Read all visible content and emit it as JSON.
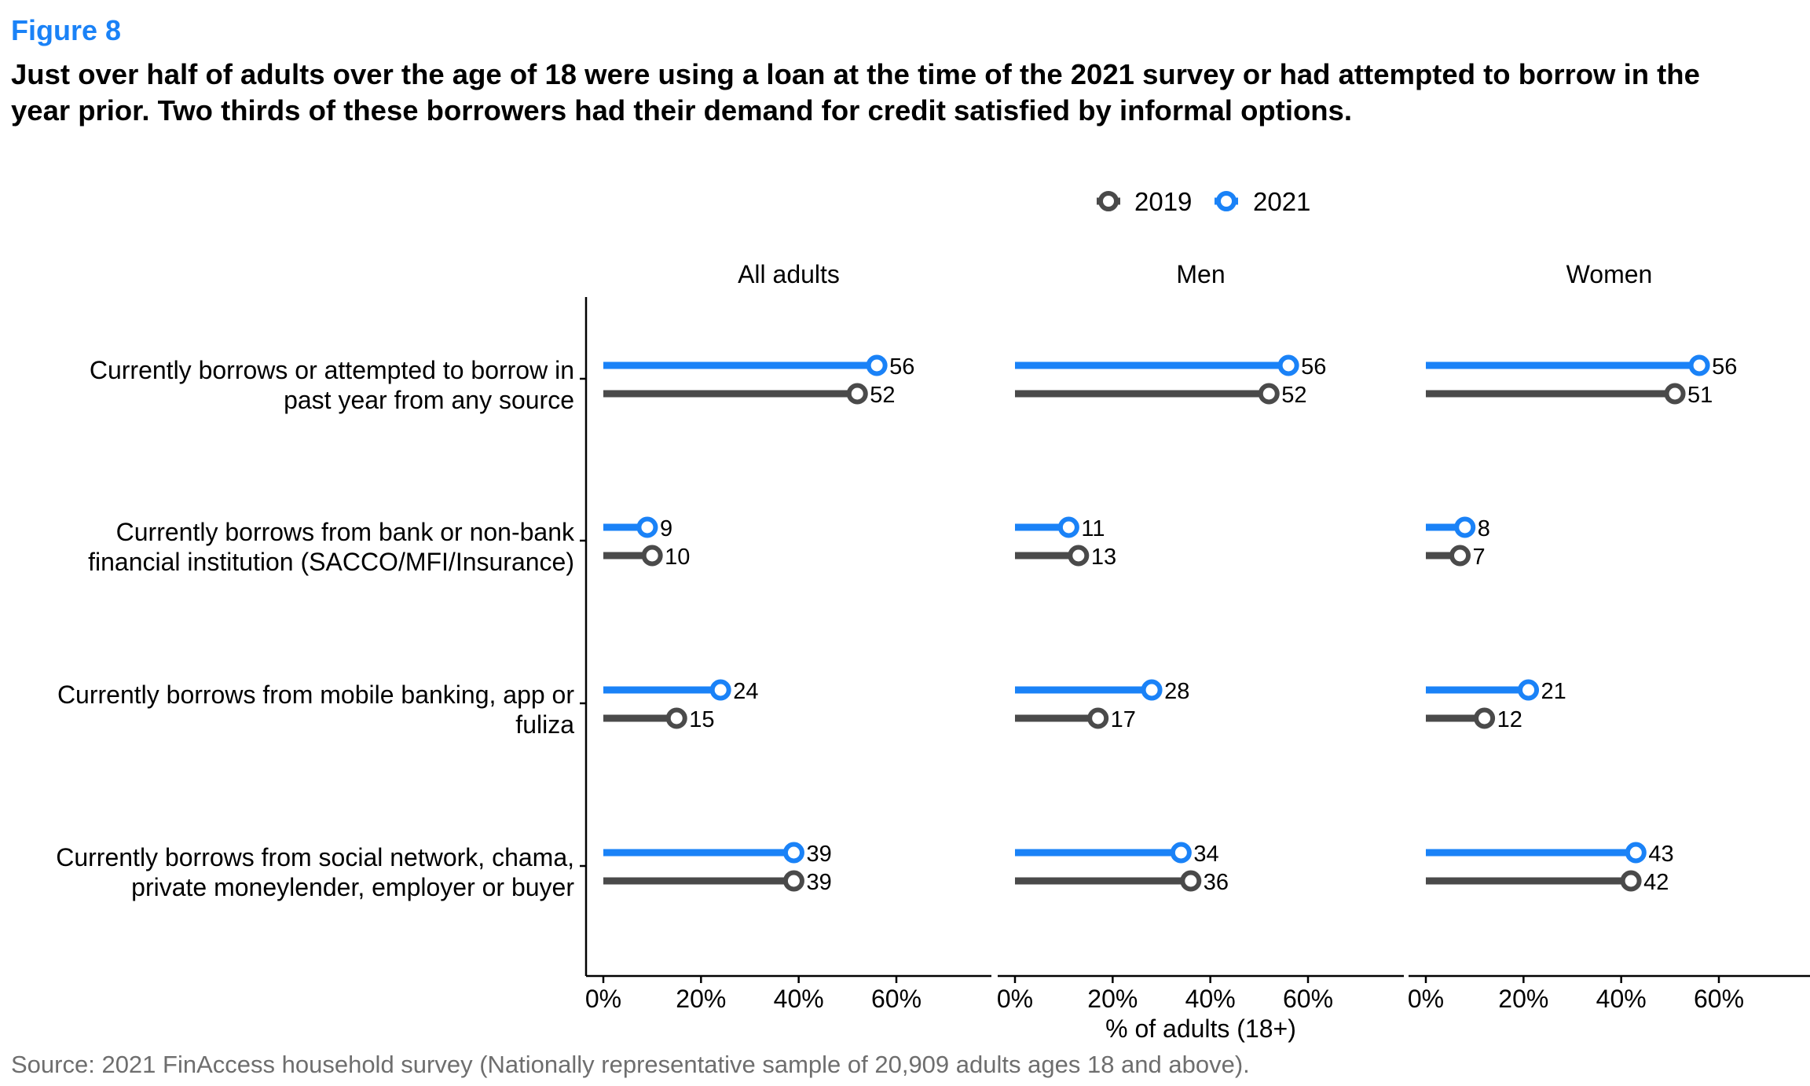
{
  "figure_label": "Figure 8",
  "headline": "Just over half of adults over the age of 18 were using a loan at the time of the 2021 survey or had attempted to borrow in the year prior. Two thirds of these borrowers had their demand for credit satisfied by informal options.",
  "source": "Source: 2021 FinAccess household survey (Nationally representative sample of 20,909 adults ages 18 and above).",
  "colors": {
    "series_2019": "#4a4a4a",
    "series_2021": "#1a82f7",
    "axis": "#000000"
  },
  "chart_data": {
    "type": "dumbbell-lollipop",
    "legend_position": "top",
    "xlabel": "% of adults (18+)",
    "xlim": [
      0,
      80
    ],
    "x_ticks": [
      0,
      20,
      40,
      60
    ],
    "x_tick_labels": [
      "0%",
      "20%",
      "40%",
      "60%"
    ],
    "panels": [
      "All adults",
      "Men",
      "Women"
    ],
    "categories": [
      [
        "Currently borrows or attempted to borrow in",
        "past year from any source"
      ],
      [
        "Currently borrows from bank or non-bank",
        "financial institution (SACCO/MFI/Insurance)"
      ],
      [
        "Currently borrows from mobile banking, app or",
        "fuliza"
      ],
      [
        "Currently borrows from social network, chama,",
        "private moneylender, employer or buyer"
      ]
    ],
    "series": [
      {
        "name": "2019",
        "values": [
          [
            52,
            10,
            15,
            39
          ],
          [
            52,
            13,
            17,
            36
          ],
          [
            51,
            7,
            12,
            42
          ]
        ]
      },
      {
        "name": "2021",
        "values": [
          [
            56,
            9,
            24,
            39
          ],
          [
            56,
            11,
            28,
            34
          ],
          [
            56,
            8,
            21,
            43
          ]
        ]
      }
    ]
  }
}
